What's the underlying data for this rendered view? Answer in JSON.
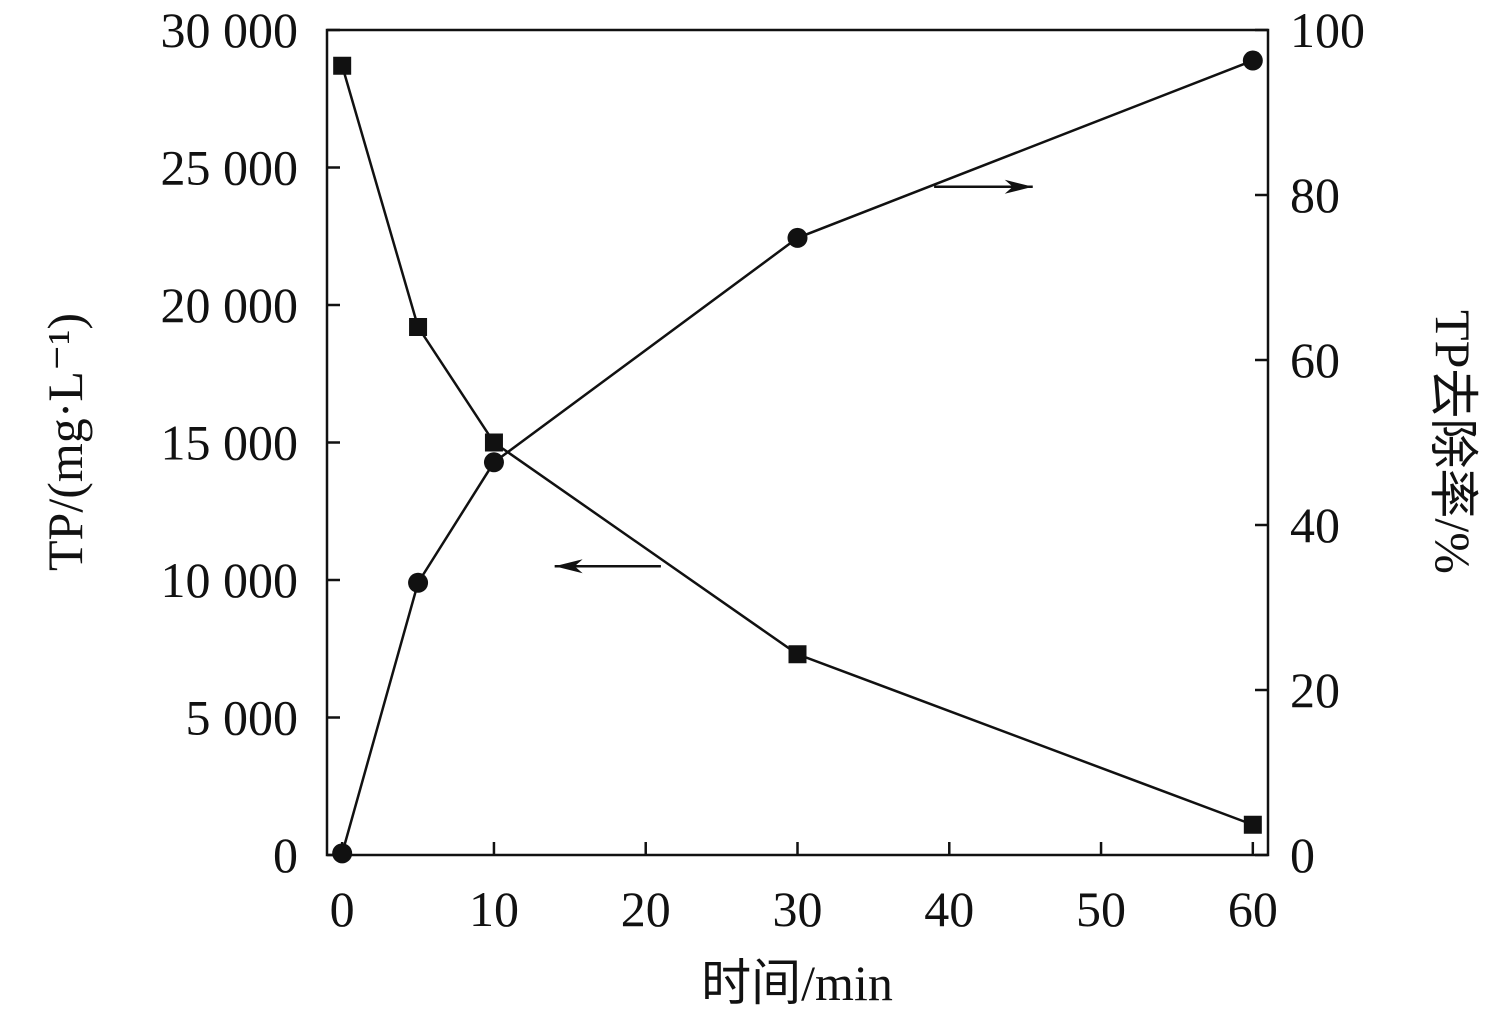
{
  "chart_data": {
    "type": "line",
    "xlabel": "时间/min",
    "ylabel_left": "TP/(mg·L⁻¹)",
    "ylabel_right": "TP去除率/%",
    "xlim": [
      -1,
      61
    ],
    "ylim_left": [
      0,
      30000
    ],
    "ylim_right": [
      0,
      100
    ],
    "x_ticks": [
      0,
      10,
      20,
      30,
      40,
      50,
      60
    ],
    "y_left_ticks": [
      0,
      5000,
      10000,
      15000,
      20000,
      25000,
      30000
    ],
    "y_left_tick_labels": [
      "0",
      "5 000",
      "10 000",
      "15 000",
      "20 000",
      "25 000",
      "30 000"
    ],
    "y_right_ticks": [
      0,
      20,
      40,
      60,
      80,
      100
    ],
    "series": [
      {
        "axis": "left",
        "marker": "square",
        "x": [
          0,
          5,
          10,
          30,
          60
        ],
        "values": [
          28700,
          19200,
          15000,
          7300,
          1100
        ]
      },
      {
        "axis": "right",
        "marker": "circle",
        "x": [
          0,
          5,
          10,
          30,
          60
        ],
        "values": [
          0.2,
          33,
          47.6,
          74.8,
          96.3
        ]
      }
    ],
    "annotations": [
      {
        "type": "arrow",
        "direction": "left",
        "points_to": "left-axis",
        "x_from": 21,
        "x_to": 14,
        "y_left": 10500
      },
      {
        "type": "arrow",
        "direction": "right",
        "points_to": "right-axis",
        "x_from": 39,
        "x_to": 45.5,
        "y_right": 81
      }
    ],
    "grid": false,
    "legend": "none"
  }
}
